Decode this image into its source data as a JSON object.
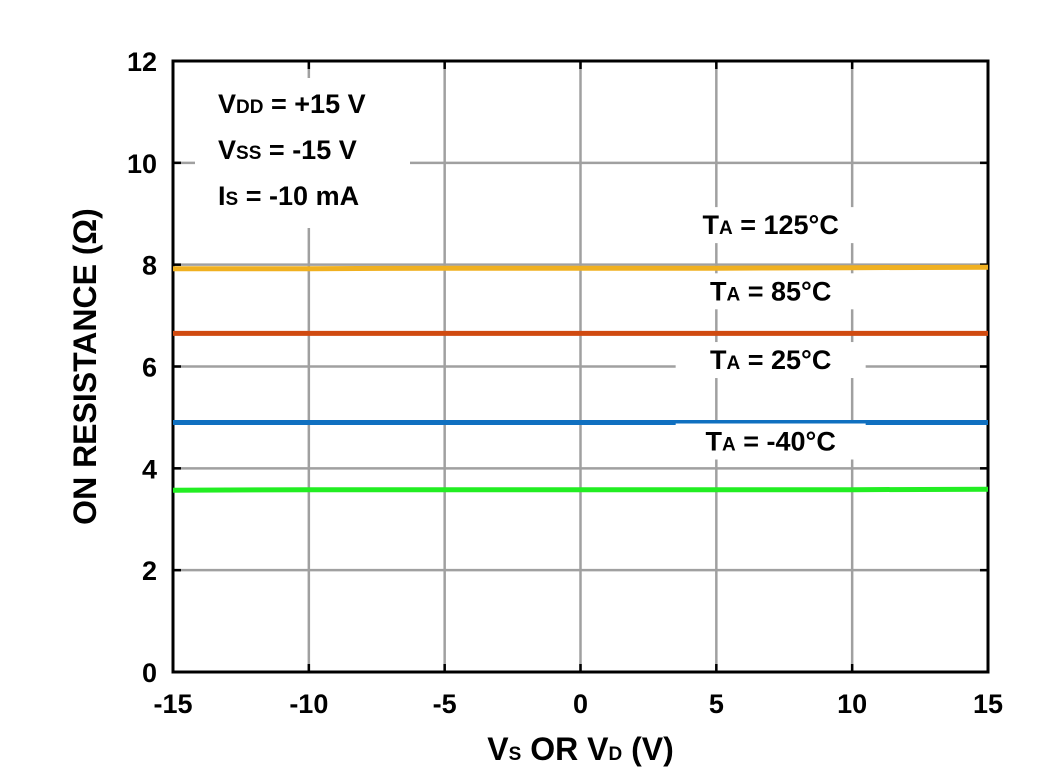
{
  "chart_data": {
    "type": "line",
    "xlabel": "VS OR VD (V)",
    "ylabel": "ON RESISTANCE (Ω)",
    "xlim": [
      -15,
      15
    ],
    "ylim": [
      0,
      12
    ],
    "x_ticks": [
      -15,
      -10,
      -5,
      0,
      5,
      10,
      15
    ],
    "y_ticks": [
      0,
      2,
      4,
      6,
      8,
      10,
      12
    ],
    "grid": true,
    "conditions": [
      "VDD = +15 V",
      "VSS = -15 V",
      "IS = -10 mA"
    ],
    "series": [
      {
        "name": "TA = 125°C",
        "color": "#F0B020",
        "x": [
          -15,
          -10,
          -5,
          0,
          5,
          10,
          15
        ],
        "y": [
          7.92,
          7.92,
          7.93,
          7.93,
          7.93,
          7.94,
          7.95
        ]
      },
      {
        "name": "TA = 85°C",
        "color": "#D04A10",
        "x": [
          -15,
          -10,
          -5,
          0,
          5,
          10,
          15
        ],
        "y": [
          6.65,
          6.65,
          6.65,
          6.65,
          6.65,
          6.65,
          6.65
        ]
      },
      {
        "name": "TA = 25°C",
        "color": "#1070C0",
        "x": [
          -15,
          -10,
          -5,
          0,
          5,
          10,
          15
        ],
        "y": [
          4.9,
          4.9,
          4.9,
          4.9,
          4.9,
          4.9,
          4.9
        ]
      },
      {
        "name": "TA = -40°C",
        "color": "#22EE22",
        "x": [
          -15,
          -10,
          -5,
          0,
          5,
          10,
          15
        ],
        "y": [
          3.57,
          3.58,
          3.58,
          3.58,
          3.58,
          3.58,
          3.59
        ]
      }
    ]
  }
}
